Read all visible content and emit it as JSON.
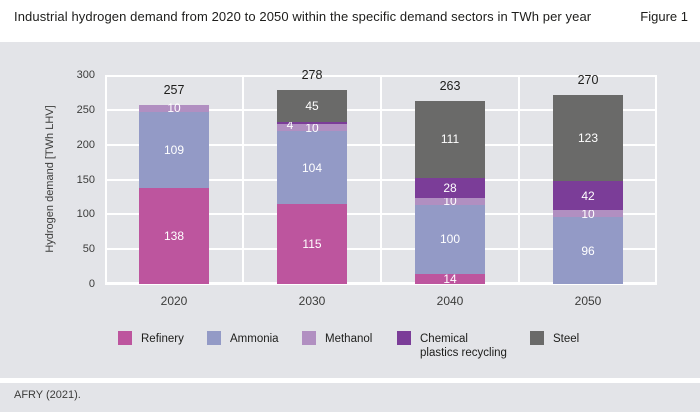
{
  "header": {
    "title": "Industrial hydrogen demand from 2020 to 2050 within the specific demand sectors in TWh per year",
    "figure_label": "Figure 1"
  },
  "footer": {
    "source": "AFRY (2021)."
  },
  "colors": {
    "panel_bg": "#e3e4e8",
    "grid": "#ffffff",
    "text_dark": "#1d1d1b",
    "text_tick": "#3c3c3b",
    "refinery": "#bd559e",
    "ammonia": "#939ac6",
    "methanol": "#b18fc1",
    "chemical_plastics_recycling": "#7b3d98",
    "steel": "#6a6a69"
  },
  "chart_data": {
    "type": "bar",
    "stacked": true,
    "categories": [
      "2020",
      "2030",
      "2040",
      "2050"
    ],
    "series": [
      {
        "name": "Refinery",
        "color": "#bd559e",
        "values": [
          138,
          115,
          14,
          0
        ]
      },
      {
        "name": "Ammonia",
        "color": "#939ac6",
        "values": [
          109,
          104,
          100,
          96
        ]
      },
      {
        "name": "Methanol",
        "color": "#b18fc1",
        "values": [
          10,
          10,
          10,
          10
        ]
      },
      {
        "name": "Chemical plastics recycling",
        "color": "#7b3d98",
        "values": [
          0,
          4,
          28,
          42
        ]
      },
      {
        "name": "Steel",
        "color": "#6a6a69",
        "values": [
          0,
          45,
          111,
          123
        ]
      }
    ],
    "totals": [
      257,
      278,
      263,
      270
    ],
    "ylabel": "Hydrogen demand [TWh LHV]",
    "yticks": [
      0,
      50,
      100,
      150,
      200,
      250,
      300
    ],
    "ylim": [
      0,
      300
    ],
    "grid": true,
    "legend_position": "bottom",
    "legend_lines": [
      [
        "Refinery"
      ],
      [
        "Ammonia"
      ],
      [
        "Methanol"
      ],
      [
        "Chemical",
        "plastics recycling"
      ],
      [
        "Steel"
      ]
    ],
    "label_hints": {
      "1-3": {
        "dx": -22,
        "dy": 2
      }
    }
  }
}
